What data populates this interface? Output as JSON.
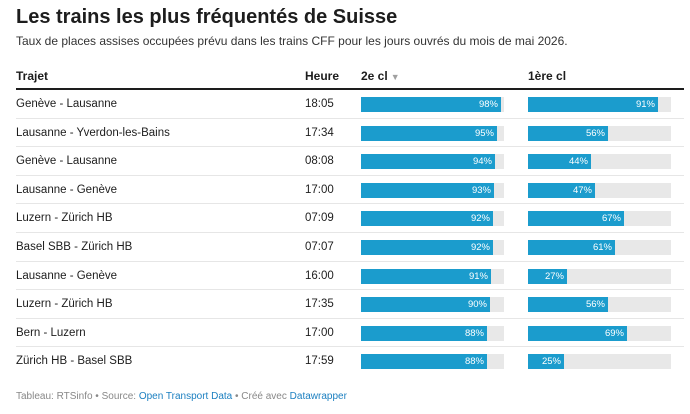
{
  "title": "Les trains les plus fréquentés de Suisse",
  "subtitle": "Taux de places assises occupées prévu dans les trains CFF pour les jours ouvrés du mois de mai 2026.",
  "columns": {
    "trajet": "Trajet",
    "heure": "Heure",
    "second": "2e cl",
    "first": "1ère cl"
  },
  "footer": {
    "prefix": "Tableau: RTSinfo • Source:",
    "source_link": "Open Transport Data",
    "middle": "• Créé avec",
    "tool_link": "Datawrapper"
  },
  "chart_data": {
    "type": "table",
    "sort": "2e cl descending",
    "colors": {
      "bar": "#1b9ccd",
      "bar_background": "#e8e8e8"
    },
    "rows": [
      {
        "trajet": "Genève - Lausanne",
        "heure": "18:05",
        "second": 98,
        "first": 91,
        "second_label": "98%",
        "first_label": "91%"
      },
      {
        "trajet": "Lausanne - Yverdon-les-Bains",
        "heure": "17:34",
        "second": 95,
        "first": 56,
        "second_label": "95%",
        "first_label": "56%"
      },
      {
        "trajet": "Genève - Lausanne",
        "heure": "08:08",
        "second": 94,
        "first": 44,
        "second_label": "94%",
        "first_label": "44%"
      },
      {
        "trajet": "Lausanne - Genève",
        "heure": "17:00",
        "second": 93,
        "first": 47,
        "second_label": "93%",
        "first_label": "47%"
      },
      {
        "trajet": "Luzern - Zürich HB",
        "heure": "07:09",
        "second": 92,
        "first": 67,
        "second_label": "92%",
        "first_label": "67%"
      },
      {
        "trajet": "Basel SBB - Zürich HB",
        "heure": "07:07",
        "second": 92,
        "first": 61,
        "second_label": "92%",
        "first_label": "61%"
      },
      {
        "trajet": "Lausanne - Genève",
        "heure": "16:00",
        "second": 91,
        "first": 27,
        "second_label": "91%",
        "first_label": "27%"
      },
      {
        "trajet": "Luzern - Zürich HB",
        "heure": "17:35",
        "second": 90,
        "first": 56,
        "second_label": "90%",
        "first_label": "56%"
      },
      {
        "trajet": "Bern - Luzern",
        "heure": "17:00",
        "second": 88,
        "first": 69,
        "second_label": "88%",
        "first_label": "69%"
      },
      {
        "trajet": "Zürich HB - Basel SBB",
        "heure": "17:59",
        "second": 88,
        "first": 25,
        "second_label": "88%",
        "first_label": "25%"
      }
    ]
  }
}
